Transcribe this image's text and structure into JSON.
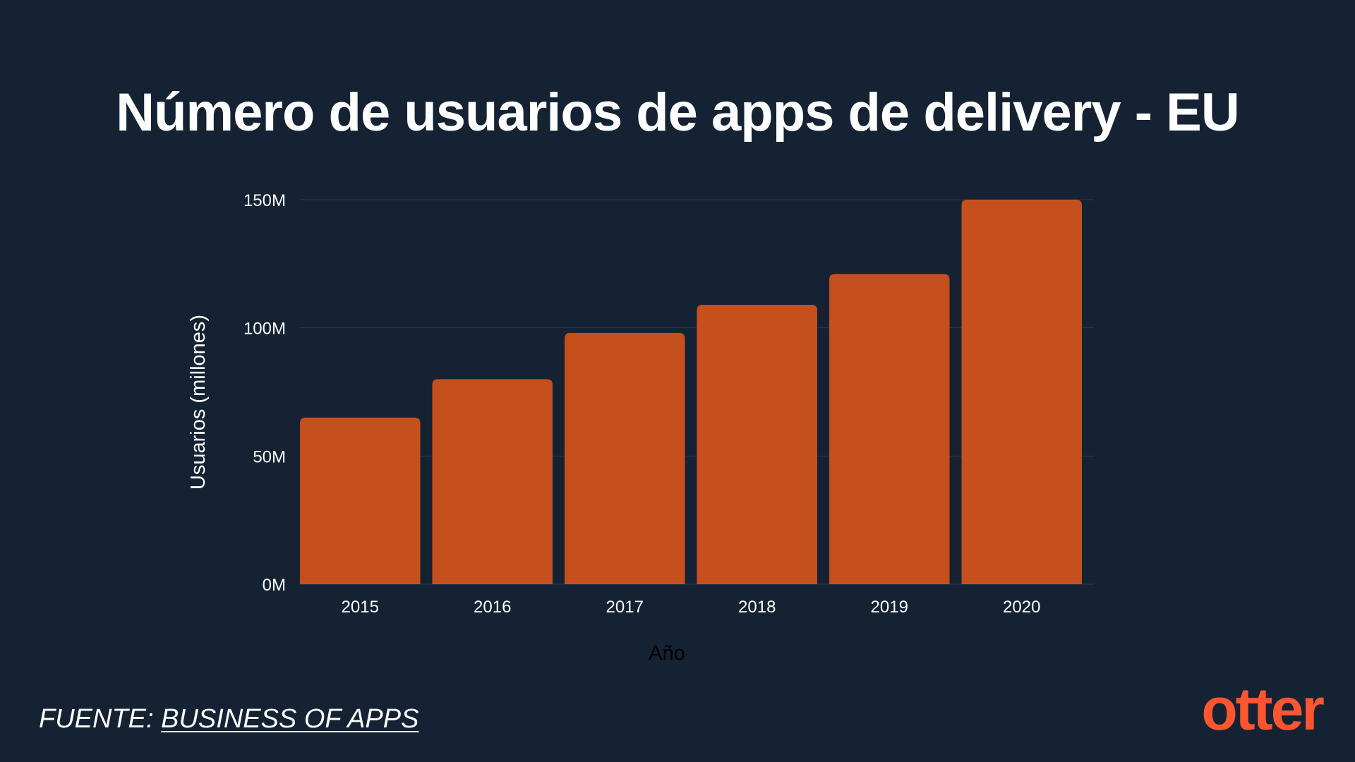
{
  "title": "Número de usuarios de apps de delivery - EU",
  "source": {
    "prefix": "FUENTE: ",
    "link_text": "BUSINESS OF APPS"
  },
  "logo": "otter",
  "colors": {
    "background": "#142233",
    "bar": "#c5501e",
    "logo": "#ff5530",
    "grid": "#2a3a4d"
  },
  "chart_data": {
    "type": "bar",
    "categories": [
      "2015",
      "2016",
      "2017",
      "2018",
      "2019",
      "2020"
    ],
    "values": [
      65,
      80,
      98,
      109,
      121,
      150
    ],
    "xlabel": "Año",
    "ylabel": "Usuarios (millones)",
    "ylim": [
      0,
      150
    ],
    "yticks": [
      0,
      50,
      100,
      150
    ],
    "ytick_labels": [
      "0M",
      "50M",
      "100M",
      "150M"
    ],
    "grid": true,
    "legend": "none"
  }
}
